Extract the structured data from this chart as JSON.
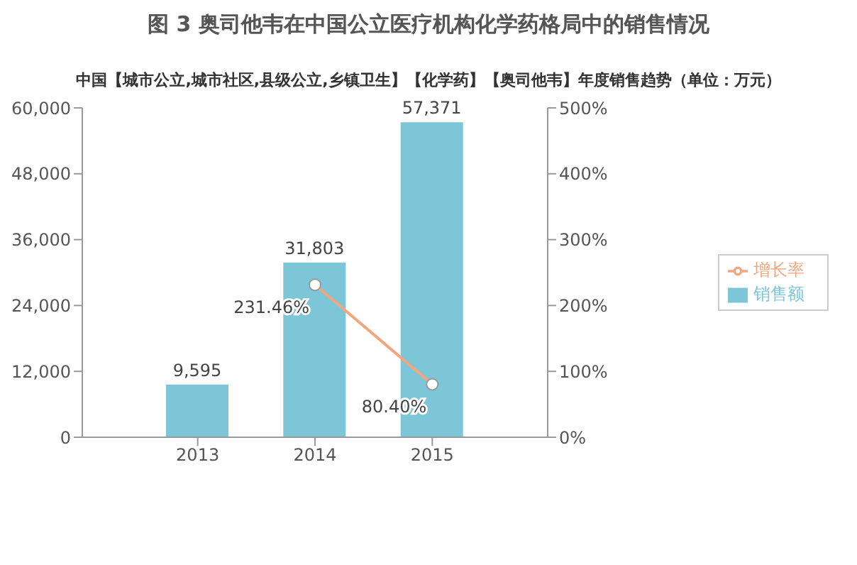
{
  "chart_data": {
    "type": "bar",
    "title": "图 3 奥司他韦在中国公立医疗机构化学药格局中的销售情况",
    "subtitle": "中国【城市公立,城市社区,县级公立,乡镇卫生】【化学药】【奥司他韦】年度销售趋势（单位：万元）",
    "categories": [
      "2013",
      "2014",
      "2015"
    ],
    "series": [
      {
        "name": "销售额",
        "color": "#7cc6d8",
        "values": [
          9595,
          31803,
          57371
        ],
        "value_labels": [
          "9,595",
          "31,803",
          "57,371"
        ]
      },
      {
        "name": "增长率",
        "type": "line",
        "axis": "y2",
        "color": "#f0a77e",
        "values": [
          null,
          231.46,
          80.4
        ],
        "value_labels": [
          null,
          "231.46%",
          "80.40%"
        ]
      }
    ],
    "ylim": [
      0,
      60000
    ],
    "yticks": [
      {
        "value": 0,
        "label": "0"
      },
      {
        "value": 12000,
        "label": "12,000"
      },
      {
        "value": 24000,
        "label": "24,000"
      },
      {
        "value": 36000,
        "label": "36,000"
      },
      {
        "value": 48000,
        "label": "48,000"
      },
      {
        "value": 60000,
        "label": "60,000"
      }
    ],
    "y2lim": [
      0,
      500
    ],
    "y2ticks": [
      {
        "value": 0,
        "label": "0%"
      },
      {
        "value": 100,
        "label": "100%"
      },
      {
        "value": 200,
        "label": "200%"
      },
      {
        "value": 300,
        "label": "300%"
      },
      {
        "value": 400,
        "label": "400%"
      },
      {
        "value": 500,
        "label": "500%"
      }
    ],
    "grid": false,
    "legend": "right",
    "marker": "circle"
  }
}
